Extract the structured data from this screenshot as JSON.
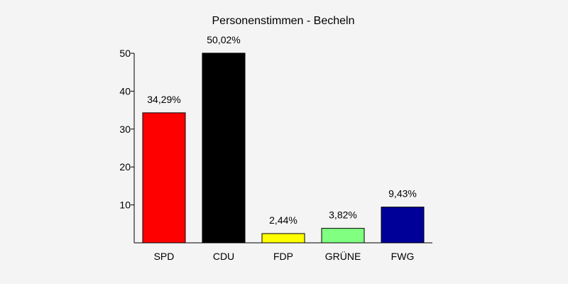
{
  "chart_data": {
    "type": "bar",
    "title": "Personenstimmen - Becheln",
    "categories": [
      "SPD",
      "CDU",
      "FDP",
      "GRÜNE",
      "FWG"
    ],
    "values": [
      34.29,
      50.02,
      2.44,
      3.82,
      9.43
    ],
    "value_labels": [
      "34,29%",
      "50,02%",
      "2,44%",
      "3,82%",
      "9,43%"
    ],
    "colors": [
      "#ff0000",
      "#000000",
      "#ffff00",
      "#80ff80",
      "#000099"
    ],
    "y_ticks": [
      10,
      20,
      30,
      40,
      50
    ],
    "ylim": [
      0,
      50
    ],
    "xlabel": "",
    "ylabel": "",
    "grid": false,
    "legend": "none"
  }
}
